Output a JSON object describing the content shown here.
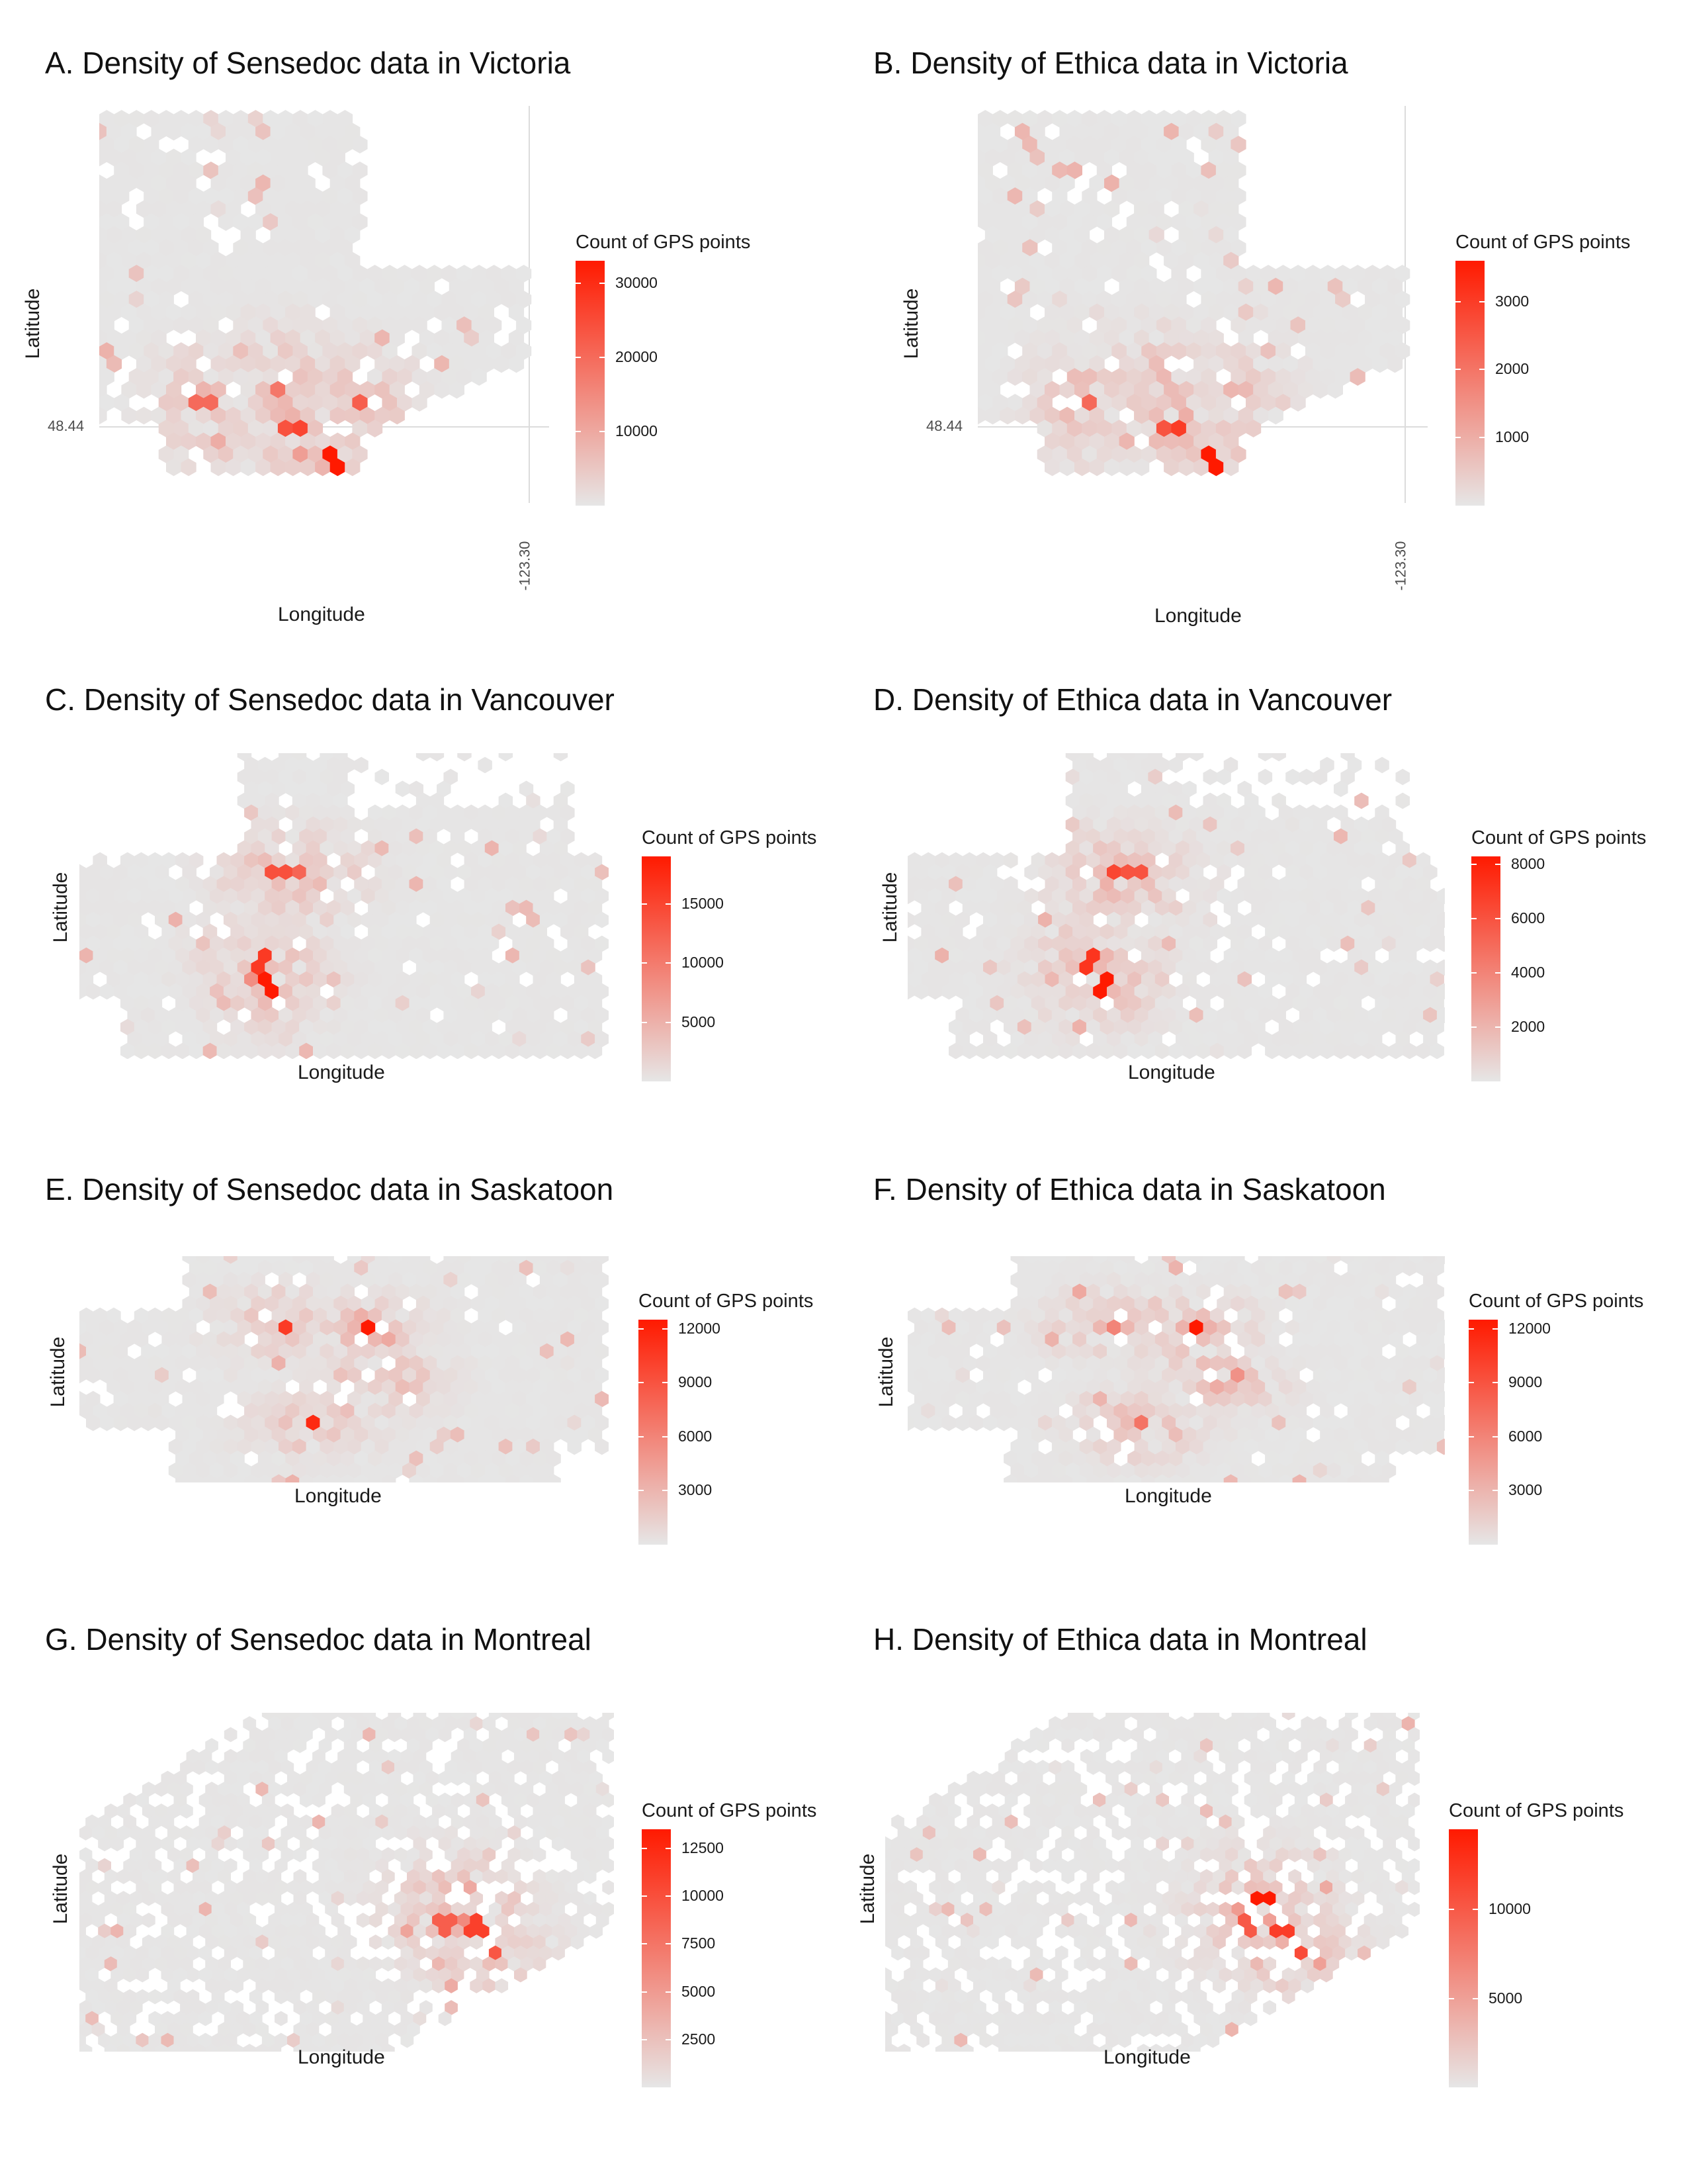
{
  "chart_data": [
    {
      "type": "heatmap",
      "subtype": "hexbin",
      "title": "A. Density of Sensedoc data in Victoria",
      "xlabel": "Longitude",
      "ylabel": "Latitude",
      "x_ticks": [
        "-123.30"
      ],
      "y_ticks": [
        "48.44"
      ],
      "legend": {
        "title": "Count of GPS points",
        "ticks": [
          10000,
          20000,
          30000
        ],
        "max": 33000,
        "position": "right"
      },
      "low_color": "#e6e6e6",
      "high_color": "#ff1a00",
      "grid": true,
      "seed": 11,
      "region": "victoria",
      "peak_cell_counts": [
        33000,
        26000,
        24000,
        22000,
        20000,
        18000
      ]
    },
    {
      "type": "heatmap",
      "subtype": "hexbin",
      "title": "B. Density of Ethica data in Victoria",
      "xlabel": "Longitude",
      "ylabel": "Latitude",
      "x_ticks": [
        "-123.30"
      ],
      "y_ticks": [
        "48.44"
      ],
      "legend": {
        "title": "Count of GPS points",
        "ticks": [
          1000,
          2000,
          3000
        ],
        "max": 3600,
        "position": "right"
      },
      "low_color": "#e6e6e6",
      "high_color": "#ff1a00",
      "grid": true,
      "seed": 23,
      "region": "victoria",
      "peak_cell_counts": [
        3600,
        3000,
        2600,
        2400,
        2200
      ]
    },
    {
      "type": "heatmap",
      "subtype": "hexbin",
      "title": "C. Density of Sensedoc data in Vancouver",
      "xlabel": "Longitude",
      "ylabel": "Latitude",
      "legend": {
        "title": "Count of GPS points",
        "ticks": [
          5000,
          10000,
          15000
        ],
        "max": 19000,
        "position": "right"
      },
      "low_color": "#e6e6e6",
      "high_color": "#ff1a00",
      "grid": false,
      "seed": 37,
      "region": "vancouver",
      "peak_cell_counts": [
        19000,
        16000,
        14000,
        12000
      ]
    },
    {
      "type": "heatmap",
      "subtype": "hexbin",
      "title": "D. Density of Ethica data in Vancouver",
      "xlabel": "Longitude",
      "ylabel": "Latitude",
      "legend": {
        "title": "Count of GPS points",
        "ticks": [
          2000,
          4000,
          6000,
          8000
        ],
        "max": 8300,
        "position": "right"
      },
      "low_color": "#e6e6e6",
      "high_color": "#ff1a00",
      "grid": false,
      "seed": 41,
      "region": "vancouver",
      "peak_cell_counts": [
        8300,
        7200,
        6500,
        6000
      ]
    },
    {
      "type": "heatmap",
      "subtype": "hexbin",
      "title": "E. Density of Sensedoc data in Saskatoon",
      "xlabel": "Longitude",
      "ylabel": "Latitude",
      "legend": {
        "title": "Count of GPS points",
        "ticks": [
          3000,
          6000,
          9000,
          12000
        ],
        "max": 12500,
        "position": "right"
      },
      "low_color": "#e6e6e6",
      "high_color": "#ff1a00",
      "grid": false,
      "seed": 53,
      "region": "saskatoon",
      "peak_cell_counts": [
        12500,
        11500,
        10500,
        9500
      ]
    },
    {
      "type": "heatmap",
      "subtype": "hexbin",
      "title": "F. Density of Ethica data in Saskatoon",
      "xlabel": "Longitude",
      "ylabel": "Latitude",
      "legend": {
        "title": "Count of GPS points",
        "ticks": [
          3000,
          6000,
          9000,
          12000
        ],
        "max": 12500,
        "position": "right"
      },
      "low_color": "#e6e6e6",
      "high_color": "#ff1a00",
      "grid": false,
      "seed": 67,
      "region": "saskatoon",
      "peak_cell_counts": [
        12500,
        7000,
        6000
      ]
    },
    {
      "type": "heatmap",
      "subtype": "hexbin",
      "title": "G. Density of Sensedoc data in Montreal",
      "xlabel": "Longitude",
      "ylabel": "Latitude",
      "legend": {
        "title": "Count of GPS points",
        "ticks": [
          2500,
          5000,
          7500,
          10000,
          12500
        ],
        "max": 13500,
        "position": "right"
      },
      "low_color": "#e6e6e6",
      "high_color": "#ff1a00",
      "grid": false,
      "seed": 71,
      "region": "montreal",
      "peak_cell_counts": [
        13500,
        11000,
        9500,
        9000
      ]
    },
    {
      "type": "heatmap",
      "subtype": "hexbin",
      "title": "H. Density of Ethica data in Montreal",
      "xlabel": "Longitude",
      "ylabel": "Latitude",
      "legend": {
        "title": "Count of GPS points",
        "ticks": [
          5000,
          10000
        ],
        "max": 14500,
        "position": "right"
      },
      "low_color": "#e6e6e6",
      "high_color": "#ff1a00",
      "grid": false,
      "seed": 83,
      "region": "montreal",
      "peak_cell_counts": [
        14500,
        12000,
        11000,
        10000
      ]
    }
  ]
}
